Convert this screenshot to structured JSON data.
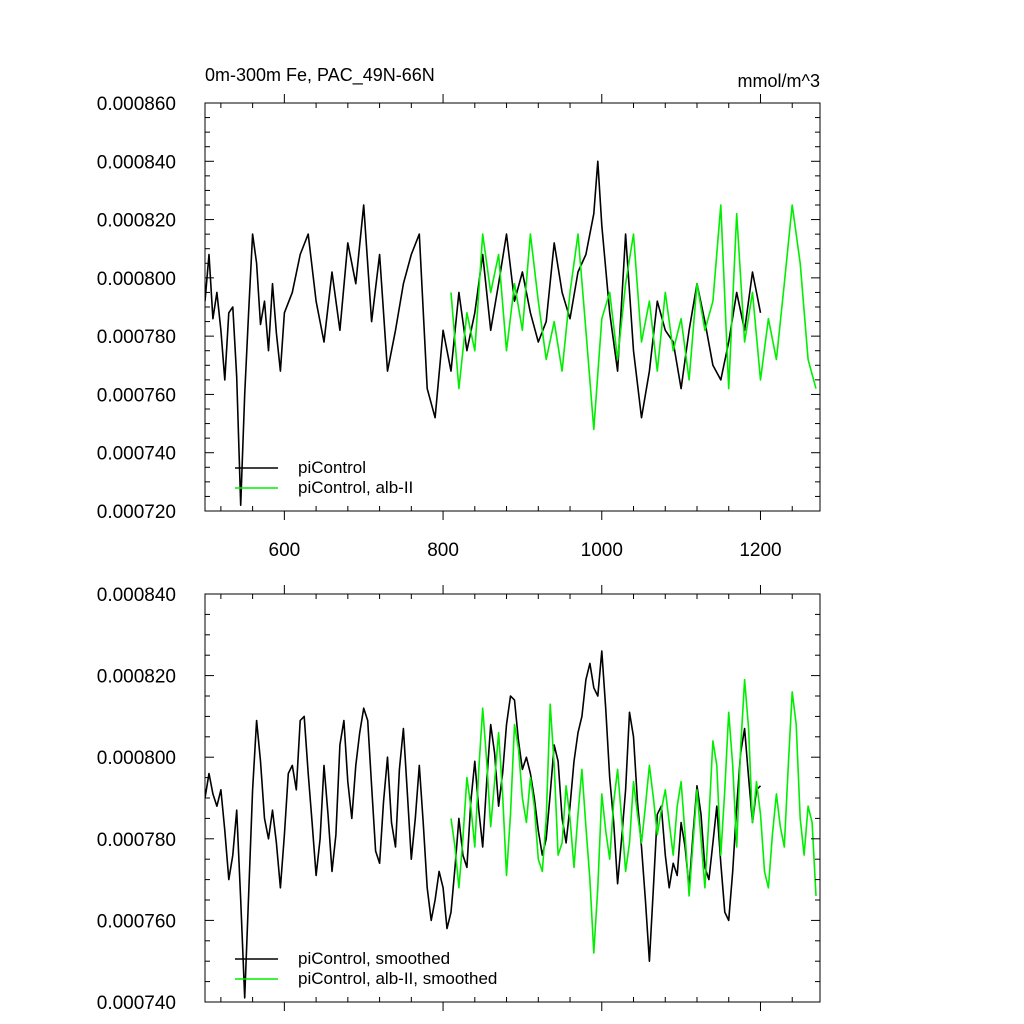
{
  "header": {
    "title": "0m-300m Fe, PAC_49N-66N",
    "units": "mmol/m^3"
  },
  "colors": {
    "control": "#000000",
    "alb": "#00ee00"
  },
  "chart_data": [
    {
      "type": "line",
      "title": "0m-300m Fe, PAC_49N-66N",
      "units_label": "mmol/m^3",
      "xlim": [
        500,
        1275
      ],
      "ylim": [
        0.00072,
        0.00086
      ],
      "xticks": [
        600,
        800,
        1000,
        1200
      ],
      "xtick_labels": [
        "600",
        "800",
        "1000",
        "1200"
      ],
      "yticks": [
        0.00072,
        0.00074,
        0.00076,
        0.00078,
        0.0008,
        0.00082,
        0.00084,
        0.00086
      ],
      "ytick_labels": [
        "0.000720",
        "0.000740",
        "0.000760",
        "0.000780",
        "0.000800",
        "0.000820",
        "0.000840",
        "0.000860"
      ],
      "grid": false,
      "legend_position": "bottom-left",
      "series": [
        {
          "name": "piControl",
          "color": "#000000",
          "x": [
            500,
            505,
            510,
            515,
            520,
            525,
            530,
            535,
            540,
            545,
            550,
            555,
            560,
            565,
            570,
            575,
            580,
            585,
            590,
            595,
            600,
            610,
            620,
            630,
            640,
            650,
            660,
            670,
            680,
            690,
            700,
            710,
            720,
            730,
            740,
            750,
            760,
            770,
            780,
            790,
            800,
            810,
            820,
            830,
            840,
            850,
            860,
            870,
            880,
            890,
            900,
            910,
            920,
            930,
            940,
            950,
            960,
            970,
            980,
            990,
            995,
            1000,
            1010,
            1020,
            1030,
            1040,
            1050,
            1060,
            1070,
            1080,
            1090,
            1100,
            1110,
            1120,
            1130,
            1140,
            1150,
            1160,
            1170,
            1180,
            1190,
            1200
          ],
          "y": [
            0.000792,
            0.000808,
            0.000786,
            0.000795,
            0.000782,
            0.000765,
            0.000788,
            0.00079,
            0.000766,
            0.000722,
            0.00076,
            0.000788,
            0.000815,
            0.000805,
            0.000784,
            0.000792,
            0.000775,
            0.000798,
            0.000781,
            0.000768,
            0.000788,
            0.000795,
            0.000808,
            0.000815,
            0.000792,
            0.000778,
            0.000802,
            0.000782,
            0.000812,
            0.000798,
            0.000825,
            0.000785,
            0.000808,
            0.000768,
            0.000782,
            0.000798,
            0.000808,
            0.000815,
            0.000762,
            0.000752,
            0.000782,
            0.000768,
            0.000795,
            0.000775,
            0.000788,
            0.000808,
            0.000782,
            0.000798,
            0.000815,
            0.000792,
            0.000802,
            0.000788,
            0.000778,
            0.000785,
            0.000812,
            0.000795,
            0.000786,
            0.000802,
            0.000808,
            0.000822,
            0.00084,
            0.000818,
            0.000788,
            0.000768,
            0.000815,
            0.000775,
            0.000752,
            0.000768,
            0.000792,
            0.000782,
            0.000778,
            0.000762,
            0.000782,
            0.000798,
            0.000785,
            0.00077,
            0.000765,
            0.000778,
            0.000795,
            0.000782,
            0.000802,
            0.000788
          ]
        },
        {
          "name": "piControl, alb-II",
          "color": "#00ee00",
          "x": [
            810,
            820,
            830,
            840,
            850,
            860,
            870,
            880,
            890,
            900,
            910,
            920,
            930,
            940,
            950,
            960,
            970,
            980,
            990,
            1000,
            1010,
            1020,
            1030,
            1040,
            1050,
            1060,
            1070,
            1080,
            1090,
            1100,
            1110,
            1120,
            1130,
            1140,
            1150,
            1160,
            1170,
            1180,
            1190,
            1200,
            1210,
            1220,
            1230,
            1240,
            1250,
            1260,
            1270
          ],
          "y": [
            0.000795,
            0.000762,
            0.000788,
            0.000775,
            0.000815,
            0.000795,
            0.000808,
            0.000775,
            0.000798,
            0.000782,
            0.000815,
            0.000792,
            0.000772,
            0.000785,
            0.000768,
            0.000795,
            0.000815,
            0.000782,
            0.000748,
            0.000786,
            0.000795,
            0.000772,
            0.000798,
            0.000815,
            0.000778,
            0.000792,
            0.000768,
            0.000795,
            0.000775,
            0.000786,
            0.000765,
            0.000798,
            0.000782,
            0.000792,
            0.000825,
            0.000762,
            0.000822,
            0.000778,
            0.000795,
            0.000765,
            0.000786,
            0.000772,
            0.000798,
            0.000825,
            0.000805,
            0.000772,
            0.000762
          ]
        }
      ],
      "legend": [
        "piControl",
        "piControl, alb-II"
      ]
    },
    {
      "type": "line",
      "xlim": [
        500,
        1275
      ],
      "ylim": [
        0.00074,
        0.00084
      ],
      "xticks": [
        600,
        800,
        1000,
        1200
      ],
      "yticks": [
        0.00074,
        0.00076,
        0.00078,
        0.0008,
        0.00082,
        0.00084
      ],
      "ytick_labels": [
        "0.000740",
        "0.000760",
        "0.000780",
        "0.000800",
        "0.000820",
        "0.000840"
      ],
      "grid": false,
      "legend_position": "bottom-left",
      "series": [
        {
          "name": "piControl, smoothed",
          "color": "#000000",
          "x": [
            500,
            505,
            510,
            515,
            520,
            525,
            530,
            535,
            540,
            545,
            550,
            555,
            560,
            565,
            570,
            575,
            580,
            585,
            590,
            595,
            600,
            605,
            610,
            615,
            620,
            625,
            630,
            635,
            640,
            645,
            650,
            655,
            660,
            665,
            670,
            675,
            680,
            685,
            690,
            695,
            700,
            705,
            710,
            715,
            720,
            725,
            730,
            735,
            740,
            745,
            750,
            755,
            760,
            765,
            770,
            775,
            780,
            785,
            790,
            795,
            800,
            805,
            810,
            815,
            820,
            825,
            830,
            835,
            840,
            845,
            850,
            855,
            860,
            865,
            870,
            875,
            880,
            885,
            890,
            895,
            900,
            905,
            910,
            915,
            920,
            925,
            930,
            935,
            940,
            945,
            950,
            955,
            960,
            965,
            970,
            975,
            980,
            985,
            990,
            995,
            1000,
            1005,
            1010,
            1015,
            1020,
            1025,
            1030,
            1035,
            1040,
            1045,
            1050,
            1055,
            1060,
            1065,
            1070,
            1075,
            1080,
            1085,
            1090,
            1095,
            1100,
            1105,
            1110,
            1115,
            1120,
            1125,
            1130,
            1135,
            1140,
            1145,
            1150,
            1155,
            1160,
            1165,
            1170,
            1175,
            1180,
            1185,
            1190,
            1195,
            1200
          ],
          "y": [
            0.00079,
            0.000796,
            0.000791,
            0.000788,
            0.000792,
            0.000782,
            0.00077,
            0.000776,
            0.000787,
            0.000765,
            0.000741,
            0.000766,
            0.000792,
            0.000809,
            0.000799,
            0.000785,
            0.00078,
            0.000787,
            0.000779,
            0.000768,
            0.000781,
            0.000796,
            0.000798,
            0.000792,
            0.000809,
            0.00081,
            0.000796,
            0.000784,
            0.000771,
            0.00078,
            0.000798,
            0.000786,
            0.000772,
            0.000781,
            0.000803,
            0.000809,
            0.000794,
            0.000785,
            0.000798,
            0.000806,
            0.000812,
            0.000809,
            0.000793,
            0.000777,
            0.000774,
            0.000789,
            0.0008,
            0.000784,
            0.000778,
            0.000797,
            0.000807,
            0.000791,
            0.000775,
            0.000785,
            0.000798,
            0.000784,
            0.000768,
            0.00076,
            0.000765,
            0.000772,
            0.000768,
            0.000758,
            0.000762,
            0.000773,
            0.000785,
            0.000776,
            0.000773,
            0.000789,
            0.000799,
            0.000787,
            0.000778,
            0.000794,
            0.000808,
            0.000801,
            0.000788,
            0.000796,
            0.000808,
            0.000815,
            0.000814,
            0.000804,
            0.000797,
            0.0008,
            0.000796,
            0.00079,
            0.000782,
            0.000776,
            0.00078,
            0.000791,
            0.000803,
            0.000799,
            0.000785,
            0.000779,
            0.000788,
            0.000799,
            0.000806,
            0.00081,
            0.000819,
            0.000823,
            0.000817,
            0.000815,
            0.000826,
            0.000812,
            0.000795,
            0.000784,
            0.000769,
            0.00078,
            0.000792,
            0.000811,
            0.000805,
            0.000789,
            0.000778,
            0.000765,
            0.00075,
            0.000768,
            0.000786,
            0.000788,
            0.000776,
            0.000768,
            0.000774,
            0.000771,
            0.000784,
            0.000778,
            0.000768,
            0.000781,
            0.000793,
            0.000786,
            0.000773,
            0.00077,
            0.000779,
            0.000788,
            0.000774,
            0.000762,
            0.00076,
            0.000772,
            0.000788,
            0.000801,
            0.000807,
            0.000795,
            0.000784,
            0.000792,
            0.000793
          ]
        },
        {
          "name": "piControl, alb-II, smoothed",
          "color": "#00ee00",
          "x": [
            810,
            815,
            820,
            825,
            830,
            835,
            840,
            845,
            850,
            855,
            860,
            865,
            870,
            875,
            880,
            885,
            890,
            895,
            900,
            905,
            910,
            915,
            920,
            925,
            930,
            935,
            940,
            945,
            950,
            955,
            960,
            965,
            970,
            975,
            980,
            985,
            990,
            995,
            1000,
            1005,
            1010,
            1015,
            1020,
            1025,
            1030,
            1035,
            1040,
            1045,
            1050,
            1055,
            1060,
            1065,
            1070,
            1075,
            1080,
            1085,
            1090,
            1095,
            1100,
            1105,
            1110,
            1115,
            1120,
            1125,
            1130,
            1135,
            1140,
            1145,
            1150,
            1155,
            1160,
            1165,
            1170,
            1175,
            1180,
            1185,
            1190,
            1195,
            1200,
            1205,
            1210,
            1215,
            1220,
            1225,
            1230,
            1235,
            1240,
            1245,
            1250,
            1255,
            1260,
            1265,
            1270
          ],
          "y": [
            0.000785,
            0.000778,
            0.000768,
            0.00078,
            0.000795,
            0.000788,
            0.000778,
            0.000797,
            0.000812,
            0.000799,
            0.000783,
            0.000794,
            0.000806,
            0.000791,
            0.000771,
            0.000786,
            0.000808,
            0.000802,
            0.00079,
            0.000784,
            0.000795,
            0.000788,
            0.000775,
            0.000772,
            0.000785,
            0.000813,
            0.000798,
            0.000776,
            0.000779,
            0.000793,
            0.000785,
            0.000773,
            0.000786,
            0.000797,
            0.000783,
            0.00077,
            0.000752,
            0.000768,
            0.000791,
            0.000782,
            0.000775,
            0.000789,
            0.000797,
            0.000785,
            0.000772,
            0.000779,
            0.000794,
            0.000786,
            0.000779,
            0.000788,
            0.000798,
            0.00079,
            0.000781,
            0.000787,
            0.000792,
            0.000784,
            0.000776,
            0.000788,
            0.000794,
            0.000781,
            0.000766,
            0.000779,
            0.000792,
            0.00078,
            0.000768,
            0.000785,
            0.000804,
            0.000798,
            0.000776,
            0.000792,
            0.000811,
            0.000798,
            0.000778,
            0.000802,
            0.000819,
            0.000807,
            0.000784,
            0.000794,
            0.000786,
            0.000772,
            0.000768,
            0.000781,
            0.000791,
            0.000783,
            0.000778,
            0.000798,
            0.000816,
            0.000808,
            0.000785,
            0.000776,
            0.000788,
            0.000784,
            0.000766
          ]
        }
      ],
      "legend": [
        "piControl, smoothed",
        "piControl, alb-II, smoothed"
      ]
    }
  ]
}
